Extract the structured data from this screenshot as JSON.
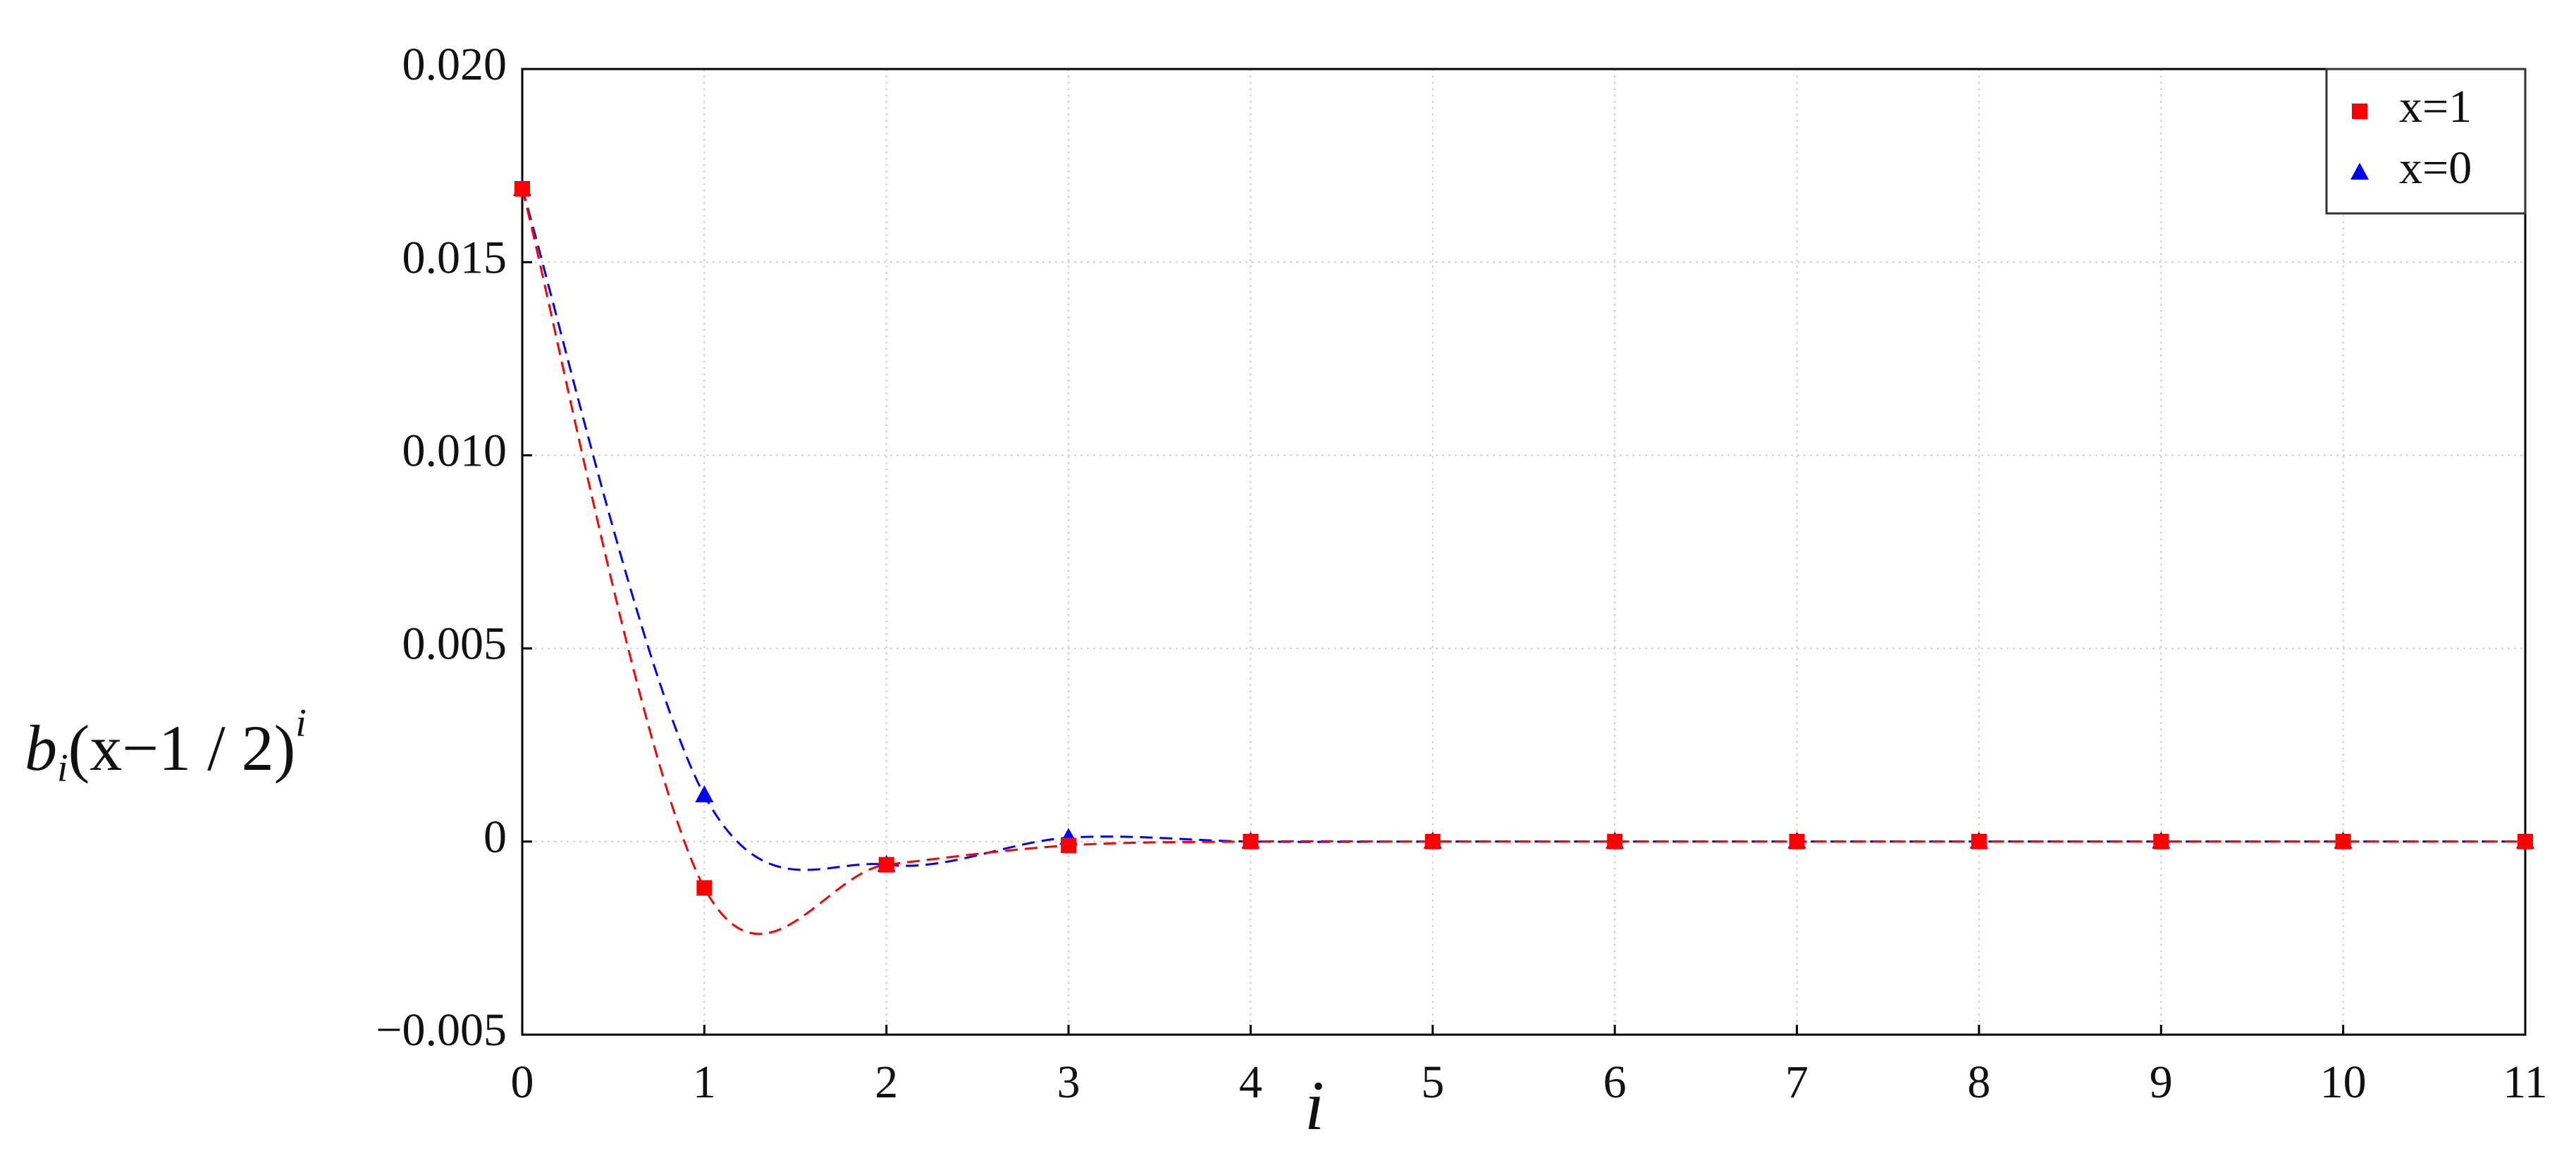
{
  "chart_data": {
    "type": "line",
    "x_label": "i",
    "y_label": [
      "b",
      "i",
      "(x−1 / 2)",
      "i"
    ],
    "x": [
      0,
      1,
      2,
      3,
      4,
      5,
      6,
      7,
      8,
      9,
      10,
      11
    ],
    "series": [
      {
        "name": "x=1",
        "color": "#ff0000",
        "marker": "square",
        "values": [
          0.0169,
          -0.0012,
          -0.0006,
          -0.0001,
          0,
          0,
          0,
          0,
          0,
          0,
          0,
          0
        ]
      },
      {
        "name": "x=0",
        "color": "#0000ff",
        "marker": "triangle",
        "values": [
          0.0169,
          0.0012,
          -0.0006,
          0.0001,
          0,
          0,
          0,
          0,
          0,
          0,
          0,
          0
        ]
      }
    ],
    "xlim": [
      0,
      11
    ],
    "xticks": [
      0,
      1,
      2,
      3,
      4,
      5,
      6,
      7,
      8,
      9,
      10,
      11
    ],
    "ylim": [
      -0.005,
      0.02
    ],
    "yticks": [
      {
        "value": -0.005,
        "label": "−0.005"
      },
      0,
      0.005,
      {
        "value": 0.01,
        "label": "0.010"
      },
      0.015,
      {
        "value": 0.02,
        "label": "0.020"
      }
    ],
    "grid": true,
    "legend": "upper right",
    "line_style": "dashed",
    "smooth": true
  }
}
